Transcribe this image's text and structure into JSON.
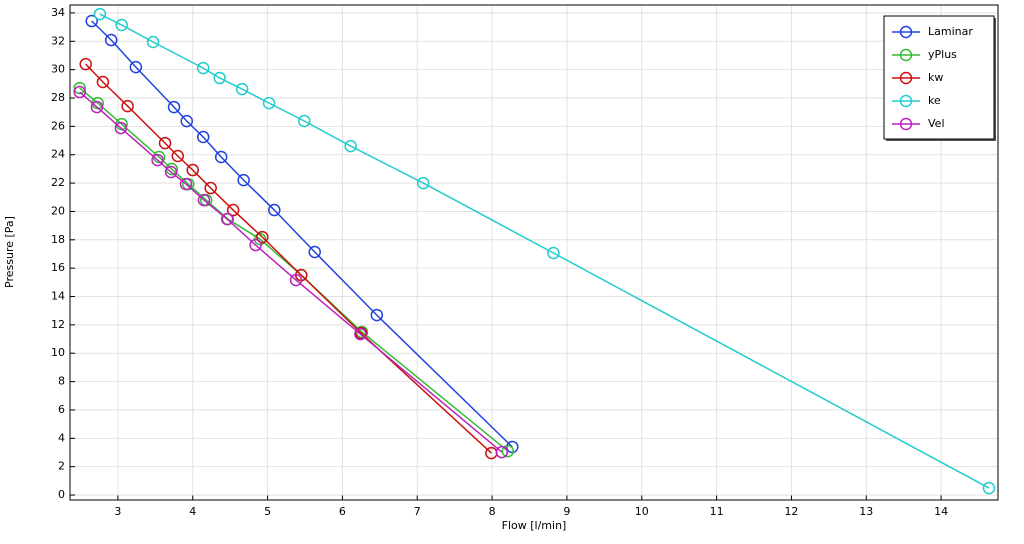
{
  "chart_data": {
    "type": "line",
    "xlabel": "Flow [l/min]",
    "ylabel": "Pressure [Pa]",
    "xlim": [
      2.36,
      14.76
    ],
    "ylim": [
      -0.35,
      34.56
    ],
    "xticks": [
      3,
      4,
      5,
      6,
      7,
      8,
      9,
      10,
      11,
      12,
      13,
      14
    ],
    "yticks": [
      0,
      2,
      4,
      6,
      8,
      10,
      12,
      14,
      16,
      18,
      20,
      22,
      24,
      26,
      28,
      30,
      32,
      34
    ],
    "grid": true,
    "legend": "upper right",
    "marker": "open-circle",
    "series": [
      {
        "name": "Laminar",
        "color": "#2244dd",
        "x": [
          2.65,
          2.91,
          3.24,
          3.75,
          3.92,
          4.14,
          4.38,
          4.68,
          5.09,
          5.63,
          6.46,
          8.27
        ],
        "values": [
          33.43,
          32.09,
          30.18,
          27.36,
          26.37,
          25.25,
          23.84,
          22.21,
          20.1,
          17.14,
          12.69,
          3.39
        ]
      },
      {
        "name": "yPlus",
        "color": "#33bb33",
        "x": [
          2.49,
          2.73,
          3.05,
          3.55,
          3.72,
          3.94,
          4.18,
          4.47,
          4.9,
          5.45,
          6.26,
          8.21
        ],
        "values": [
          28.7,
          27.64,
          26.16,
          23.84,
          22.99,
          21.93,
          20.8,
          19.46,
          18.05,
          15.51,
          11.5,
          3.1
        ]
      },
      {
        "name": "kw",
        "color": "#cc1111",
        "x": [
          2.57,
          2.8,
          3.13,
          3.63,
          3.8,
          4.0,
          4.24,
          4.54,
          4.93,
          5.45,
          6.25,
          7.99
        ],
        "values": [
          30.39,
          29.13,
          27.43,
          24.82,
          23.91,
          22.92,
          21.65,
          20.1,
          18.19,
          15.51,
          11.42,
          2.96
        ]
      },
      {
        "name": "ke",
        "color": "#22cccc",
        "x": [
          2.76,
          3.05,
          3.47,
          4.14,
          4.36,
          4.66,
          5.02,
          5.49,
          6.11,
          7.08,
          8.82,
          14.64
        ],
        "values": [
          33.92,
          33.15,
          31.95,
          30.11,
          29.41,
          28.63,
          27.64,
          26.38,
          24.61,
          22.0,
          17.07,
          0.49
        ]
      },
      {
        "name": "Vel",
        "color": "#bb22bb",
        "x": [
          2.49,
          2.72,
          3.04,
          3.53,
          3.71,
          3.91,
          4.15,
          4.46,
          4.84,
          5.38,
          6.24,
          8.13
        ],
        "values": [
          28.42,
          27.36,
          25.88,
          23.62,
          22.78,
          21.93,
          20.8,
          19.46,
          17.63,
          15.16,
          11.35,
          3.03
        ]
      }
    ]
  }
}
